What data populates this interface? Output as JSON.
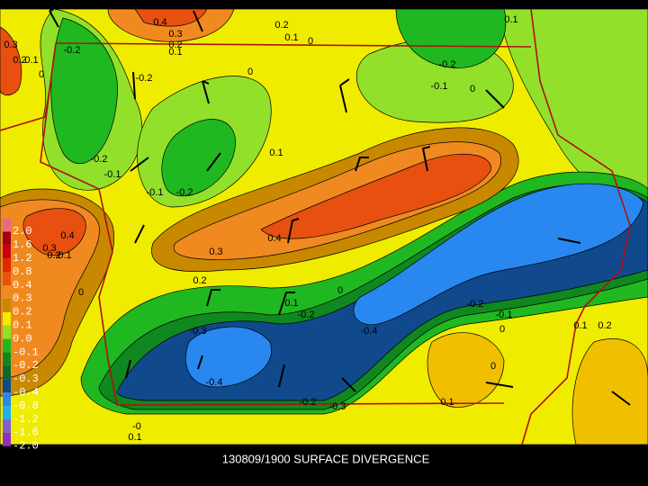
{
  "title": "130809/1900 SURFACE DIVERGENCE",
  "legend": [
    {
      "label": "2.0",
      "color": "#e86a80"
    },
    {
      "label": "1.6",
      "color": "#a00010"
    },
    {
      "label": "1.2",
      "color": "#c80010"
    },
    {
      "label": "0.8",
      "color": "#e02800"
    },
    {
      "label": "0.4",
      "color": "#e85010"
    },
    {
      "label": "0.3",
      "color": "#f08a20"
    },
    {
      "label": "0.2",
      "color": "#c88800"
    },
    {
      "label": "0.1",
      "color": "#f0ec00"
    },
    {
      "label": "0.0",
      "color": "#92e02a"
    },
    {
      "label": "-0.1",
      "color": "#20b820"
    },
    {
      "label": "-0.2",
      "color": "#108820"
    },
    {
      "label": "-0.3",
      "color": "#0a6a30"
    },
    {
      "label": "-0.4",
      "color": "#104a8c"
    },
    {
      "label": "-0.8",
      "color": "#2888f0"
    },
    {
      "label": "-1.2",
      "color": "#20b0f0"
    },
    {
      "label": "-1.6",
      "color": "#8060d0"
    },
    {
      "label": "-2.0",
      "color": "#9030c0"
    }
  ],
  "contour_labels": [
    "0.4",
    "0.3",
    "0.2",
    "0.1",
    "0.2",
    "0.1",
    "0",
    "0.1",
    "0.3",
    "0.2",
    "0.1",
    "0",
    "-0.2",
    "-0.2",
    "0",
    "-0.2",
    "-0.1",
    "0",
    "0.1",
    "-0.2",
    "-0.1",
    "-0.1",
    "-0.2",
    "0.4",
    "0.3",
    "0.2",
    "0.1",
    "0.3",
    "0.4",
    "0.2",
    "0",
    "0.1",
    "-0.2",
    "0",
    "-0.3",
    "-0.4",
    "-0.2",
    "-0.1",
    "0",
    "0.1",
    "0.2",
    "-0.4",
    "0",
    "0.1",
    "-0.2",
    "-0.3",
    "-0",
    "0.1"
  ]
}
